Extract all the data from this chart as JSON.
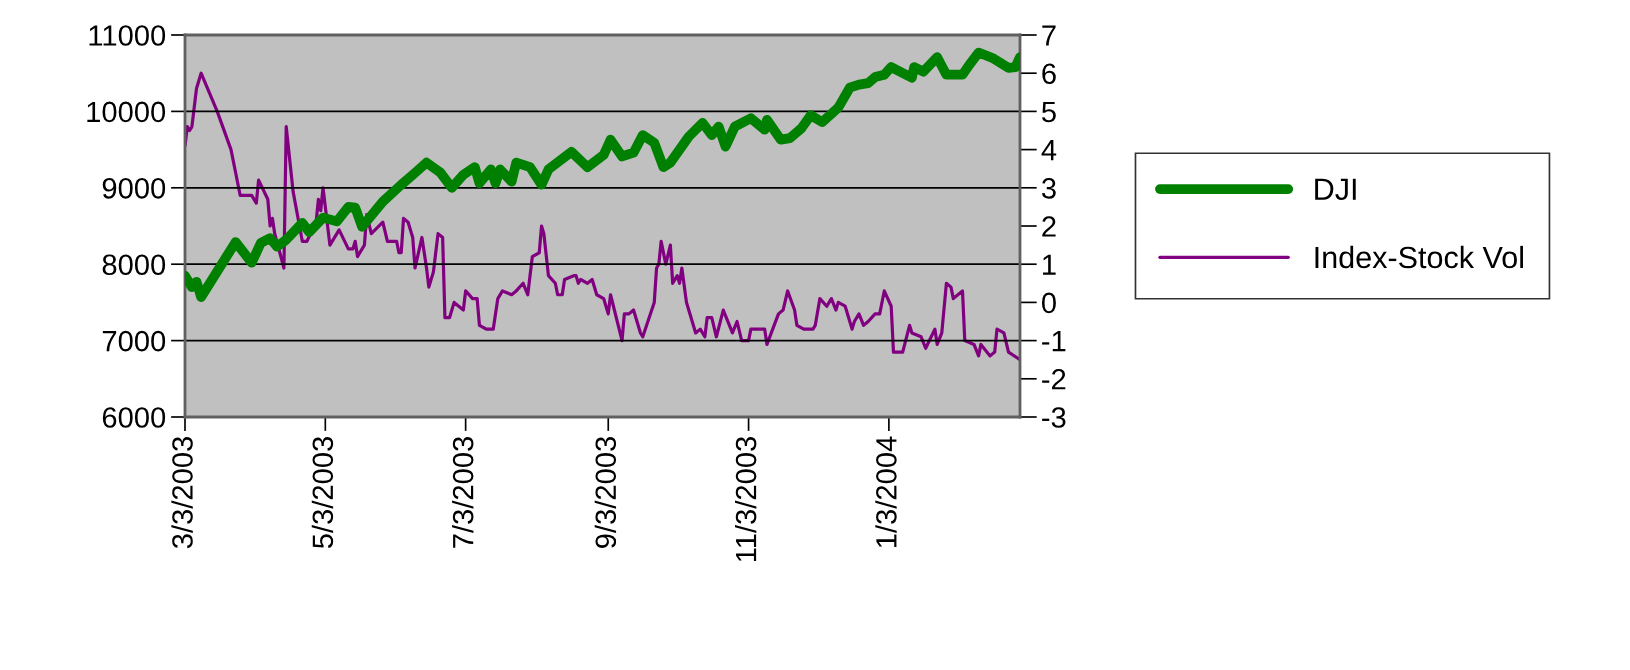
{
  "chart_data": {
    "type": "line",
    "xlim": [
      "2003-03-03",
      "2004-02-29"
    ],
    "xticks": [
      {
        "value": "2003-03-03",
        "label": "3/3/2003"
      },
      {
        "value": "2003-05-03",
        "label": "5/3/2003"
      },
      {
        "value": "2003-07-03",
        "label": "7/3/2003"
      },
      {
        "value": "2003-09-03",
        "label": "9/3/2003"
      },
      {
        "value": "2003-11-03",
        "label": "11/3/2003"
      },
      {
        "value": "2004-01-03",
        "label": "1/3/2004"
      }
    ],
    "ylim": [
      6000,
      11000
    ],
    "yticks": [
      6000,
      7000,
      8000,
      9000,
      10000,
      11000
    ],
    "y2lim": [
      -3,
      7
    ],
    "y2ticks": [
      -3,
      -2,
      -1,
      0,
      1,
      2,
      3,
      4,
      5,
      6,
      7
    ],
    "grid": "y",
    "legend": "right",
    "series": [
      {
        "name": "DJI",
        "color": "#008000",
        "x": [
          "2003-03-03",
          "2003-03-06",
          "2003-03-08",
          "2003-03-10",
          "2003-03-25",
          "2003-04-01",
          "2003-04-05",
          "2003-04-09",
          "2003-04-12",
          "2003-04-16",
          "2003-04-23",
          "2003-04-26",
          "2003-05-02",
          "2003-05-08",
          "2003-05-13",
          "2003-05-16",
          "2003-05-19",
          "2003-05-28",
          "2003-06-05",
          "2003-06-10",
          "2003-06-16",
          "2003-06-22",
          "2003-06-27",
          "2003-07-02",
          "2003-07-07",
          "2003-07-09",
          "2003-07-14",
          "2003-07-16",
          "2003-07-18",
          "2003-07-23",
          "2003-07-25",
          "2003-07-31",
          "2003-08-05",
          "2003-08-08",
          "2003-08-18",
          "2003-08-25",
          "2003-09-01",
          "2003-09-04",
          "2003-09-09",
          "2003-09-14",
          "2003-09-18",
          "2003-09-23",
          "2003-09-27",
          "2003-09-30",
          "2003-10-08",
          "2003-10-14",
          "2003-10-18",
          "2003-10-21",
          "2003-10-24",
          "2003-10-28",
          "2003-11-04",
          "2003-11-10",
          "2003-11-11",
          "2003-11-17",
          "2003-11-21",
          "2003-11-26",
          "2003-11-30",
          "2003-12-05",
          "2003-12-12",
          "2003-12-17",
          "2003-12-21",
          "2003-12-25",
          "2003-12-28",
          "2004-01-01",
          "2004-01-04",
          "2004-01-13",
          "2004-01-14",
          "2004-01-18",
          "2004-01-24",
          "2004-01-28",
          "2004-02-04",
          "2004-02-07",
          "2004-02-11",
          "2004-02-17",
          "2004-02-24",
          "2004-02-27",
          "2004-02-29"
        ],
        "values": [
          7850,
          7700,
          7770,
          7570,
          8290,
          8020,
          8280,
          8340,
          8230,
          8320,
          8540,
          8420,
          8610,
          8560,
          8750,
          8740,
          8490,
          8820,
          9040,
          9170,
          9330,
          9200,
          9000,
          9170,
          9270,
          9060,
          9240,
          9060,
          9240,
          9080,
          9330,
          9270,
          9040,
          9240,
          9470,
          9270,
          9430,
          9630,
          9410,
          9460,
          9690,
          9590,
          9270,
          9330,
          9670,
          9850,
          9690,
          9800,
          9540,
          9800,
          9910,
          9760,
          9890,
          9630,
          9650,
          9780,
          9950,
          9860,
          10050,
          10310,
          10350,
          10370,
          10450,
          10480,
          10580,
          10440,
          10580,
          10520,
          10710,
          10480,
          10480,
          10610,
          10770,
          10700,
          10570,
          10580,
          10710
        ]
      },
      {
        "name": "Index-Stock Vol",
        "color": "#800080",
        "axis": "y2",
        "x": [
          "2003-03-03",
          "2003-03-04",
          "2003-03-05",
          "2003-03-06",
          "2003-03-08",
          "2003-03-10",
          "2003-03-17",
          "2003-03-23",
          "2003-03-27",
          "2003-04-01",
          "2003-04-03",
          "2003-04-04",
          "2003-04-08",
          "2003-04-09",
          "2003-04-10",
          "2003-04-11",
          "2003-04-15",
          "2003-04-16",
          "2003-04-19",
          "2003-04-23",
          "2003-04-25",
          "2003-04-29",
          "2003-04-30",
          "2003-05-01",
          "2003-05-02",
          "2003-05-05",
          "2003-05-09",
          "2003-05-13",
          "2003-05-15",
          "2003-05-16",
          "2003-05-17",
          "2003-05-20",
          "2003-05-21",
          "2003-05-23",
          "2003-05-28",
          "2003-05-30",
          "2003-06-03",
          "2003-06-04",
          "2003-06-05",
          "2003-06-06",
          "2003-06-08",
          "2003-06-10",
          "2003-06-11",
          "2003-06-14",
          "2003-06-16",
          "2003-06-17",
          "2003-06-19",
          "2003-06-21",
          "2003-06-23",
          "2003-06-24",
          "2003-06-26",
          "2003-06-28",
          "2003-07-02",
          "2003-07-03",
          "2003-07-06",
          "2003-07-08",
          "2003-07-09",
          "2003-07-12",
          "2003-07-15",
          "2003-07-16",
          "2003-07-17",
          "2003-07-19",
          "2003-07-23",
          "2003-07-25",
          "2003-07-28",
          "2003-07-30",
          "2003-08-01",
          "2003-08-04",
          "2003-08-05",
          "2003-08-06",
          "2003-08-08",
          "2003-08-11",
          "2003-08-12",
          "2003-08-14",
          "2003-08-15",
          "2003-08-19",
          "2003-08-20",
          "2003-08-21",
          "2003-08-22",
          "2003-08-25",
          "2003-08-27",
          "2003-08-29",
          "2003-09-01",
          "2003-09-03",
          "2003-09-04",
          "2003-09-09",
          "2003-09-10",
          "2003-09-12",
          "2003-09-14",
          "2003-09-17",
          "2003-09-18",
          "2003-09-23",
          "2003-09-24",
          "2003-09-25",
          "2003-09-26",
          "2003-09-28",
          "2003-09-30",
          "2003-10-01",
          "2003-10-03",
          "2003-10-04",
          "2003-10-05",
          "2003-10-07",
          "2003-10-08",
          "2003-10-11",
          "2003-10-13",
          "2003-10-15",
          "2003-10-16",
          "2003-10-18",
          "2003-10-20",
          "2003-10-23",
          "2003-10-27",
          "2003-10-29",
          "2003-10-31",
          "2003-11-03",
          "2003-11-04",
          "2003-11-10",
          "2003-11-11",
          "2003-11-16",
          "2003-11-18",
          "2003-11-20",
          "2003-11-23",
          "2003-11-24",
          "2003-11-27",
          "2003-12-01",
          "2003-12-02",
          "2003-12-04",
          "2003-12-07",
          "2003-12-09",
          "2003-12-11",
          "2003-12-12",
          "2003-12-15",
          "2003-12-18",
          "2003-12-19",
          "2003-12-21",
          "2003-12-23",
          "2003-12-25",
          "2003-12-28",
          "2003-12-30",
          "2004-01-01",
          "2004-01-04",
          "2004-01-05",
          "2004-01-09",
          "2004-01-12",
          "2004-01-13",
          "2004-01-17",
          "2004-01-19",
          "2004-01-23",
          "2004-01-24",
          "2004-01-26",
          "2004-01-28",
          "2004-01-30",
          "2004-01-31",
          "2004-02-04",
          "2004-02-05",
          "2004-02-09",
          "2004-02-11",
          "2004-02-12",
          "2004-02-16",
          "2004-02-18",
          "2004-02-19",
          "2004-02-22",
          "2004-02-24",
          "2004-02-29"
        ],
        "values": [
          4.1,
          4.6,
          4.5,
          4.6,
          5.6,
          6.0,
          5.0,
          4.0,
          2.8,
          2.8,
          2.6,
          3.2,
          2.7,
          2.0,
          2.2,
          1.8,
          0.9,
          4.6,
          2.9,
          1.6,
          1.6,
          2.1,
          2.7,
          2.4,
          3.0,
          1.5,
          1.9,
          1.4,
          1.4,
          1.6,
          1.2,
          1.5,
          2.3,
          1.8,
          2.1,
          1.6,
          1.6,
          1.3,
          1.3,
          2.2,
          2.1,
          1.7,
          0.9,
          1.7,
          0.9,
          0.4,
          0.8,
          1.8,
          1.7,
          -0.4,
          -0.4,
          0.0,
          -0.2,
          0.3,
          0.1,
          0.1,
          -0.6,
          -0.7,
          -0.7,
          -0.3,
          0.1,
          0.3,
          0.2,
          0.3,
          0.5,
          0.2,
          1.2,
          1.3,
          2.0,
          1.8,
          0.7,
          0.5,
          0.2,
          0.2,
          0.6,
          0.7,
          0.7,
          0.5,
          0.6,
          0.5,
          0.6,
          0.2,
          0.1,
          -0.3,
          0.2,
          -1.0,
          -0.3,
          -0.3,
          -0.2,
          -0.8,
          -0.9,
          0.0,
          0.9,
          1.0,
          1.6,
          1.0,
          1.5,
          0.5,
          0.7,
          0.5,
          0.9,
          0.0,
          -0.2,
          -0.8,
          -0.7,
          -0.9,
          -0.4,
          -0.4,
          -0.9,
          -0.2,
          -0.8,
          -0.5,
          -1.0,
          -1.0,
          -0.7,
          -0.7,
          -1.1,
          -0.3,
          -0.2,
          0.3,
          -0.2,
          -0.6,
          -0.7,
          -0.7,
          -0.6,
          0.1,
          -0.1,
          0.1,
          -0.2,
          0.0,
          -0.1,
          -0.7,
          -0.5,
          -0.3,
          -0.6,
          -0.5,
          -0.3,
          -0.3,
          0.3,
          -0.1,
          -1.3,
          -1.3,
          -0.6,
          -0.8,
          -0.9,
          -1.2,
          -0.7,
          -1.1,
          -0.8,
          0.5,
          0.4,
          0.1,
          0.3,
          -1.0,
          -1.1,
          -1.4,
          -1.1,
          -1.4,
          -1.3,
          -0.7,
          -0.8,
          -1.3,
          -1.5
        ]
      }
    ]
  }
}
